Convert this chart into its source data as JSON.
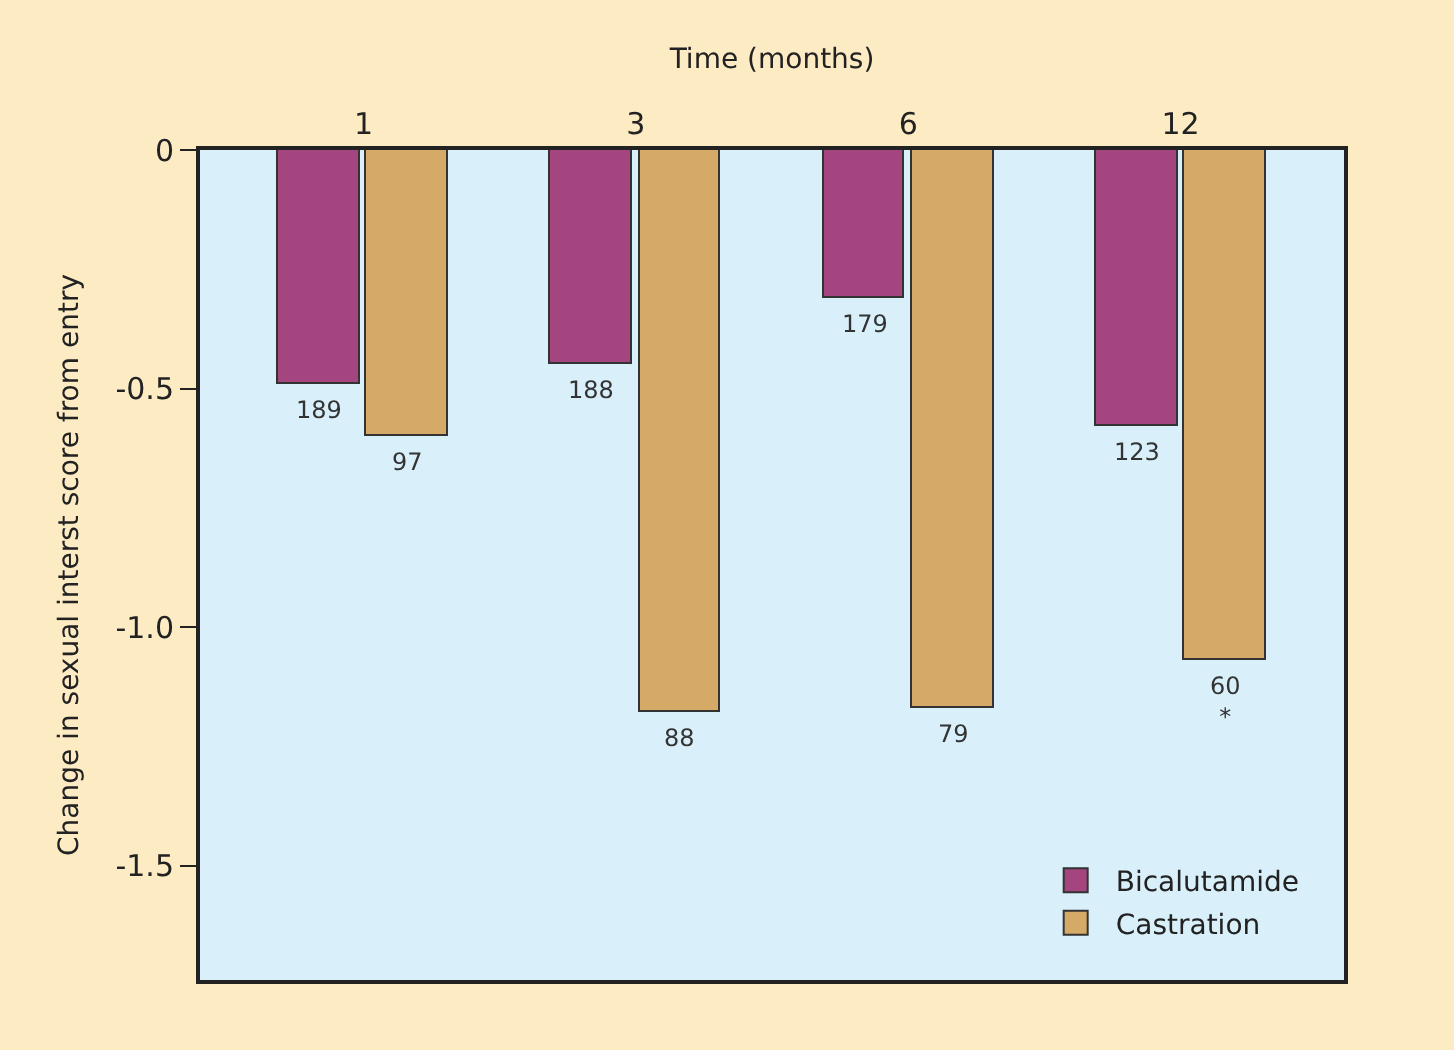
{
  "chart_data": {
    "type": "bar",
    "xlabel": "Time (months)",
    "ylabel": "Change in sexual interst score from entry",
    "categories": [
      "1",
      "3",
      "6",
      "12"
    ],
    "series": [
      {
        "name": "Bicalutamide",
        "color": "#a4457f",
        "values": [
          -0.49,
          -0.45,
          -0.31,
          -0.58
        ]
      },
      {
        "name": "Castration",
        "color": "#d4aa66",
        "values": [
          -0.6,
          -1.18,
          -1.17,
          -1.07
        ]
      }
    ],
    "annotations": [
      {
        "text": "189",
        "x": "1",
        "y": -0.49
      },
      {
        "text": "97",
        "x": "1",
        "y": -0.6
      },
      {
        "text": "188",
        "x": "3",
        "y": -0.45
      },
      {
        "text": "88",
        "x": "3",
        "y": -1.18
      },
      {
        "text": "179",
        "x": "6",
        "y": -0.31
      },
      {
        "text": "79",
        "x": "6",
        "y": -1.17
      },
      {
        "text": "123",
        "x": "12",
        "y": -0.58
      },
      {
        "text": "60\n*",
        "x": "12",
        "y": -1.07
      }
    ],
    "ylim": [
      -1.74,
      0
    ],
    "yticks": [
      0,
      -0.5,
      {
        "value": -1.0,
        "label": "-1.0"
      },
      -1.5
    ],
    "grid": false,
    "legend": "bottom right"
  }
}
